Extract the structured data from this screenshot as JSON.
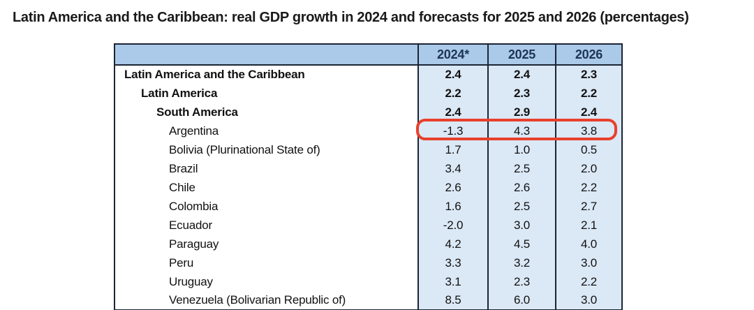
{
  "title": "Latin America and the Caribbean: real GDP growth in 2024 and forecasts for 2025 and 2026 (percentages)",
  "colors": {
    "title_text": "#1a1a1a",
    "header_bg": "#abc9e9",
    "header_text": "#1c3557",
    "cell_bg": "#dbe8f6",
    "border_dark": "#1b2433",
    "body_text": "#111111",
    "annotation_red": "#e8402c"
  },
  "table": {
    "columns": [
      "2024*",
      "2025",
      "2026"
    ],
    "rows": [
      {
        "label": "Latin America and the Caribbean",
        "indent": 0,
        "bold": true,
        "annotated": false,
        "values": [
          "2.4",
          "2.4",
          "2.3"
        ]
      },
      {
        "label": "Latin America",
        "indent": 1,
        "bold": true,
        "annotated": false,
        "values": [
          "2.2",
          "2.3",
          "2.2"
        ]
      },
      {
        "label": "South America",
        "indent": 2,
        "bold": true,
        "annotated": false,
        "values": [
          "2.4",
          "2.9",
          "2.4"
        ]
      },
      {
        "label": "Argentina",
        "indent": 3,
        "bold": false,
        "annotated": true,
        "values": [
          "-1.3",
          "4.3",
          "3.8"
        ]
      },
      {
        "label": "Bolivia (Plurinational State of)",
        "indent": 3,
        "bold": false,
        "annotated": false,
        "values": [
          "1.7",
          "1.0",
          "0.5"
        ]
      },
      {
        "label": "Brazil",
        "indent": 3,
        "bold": false,
        "annotated": false,
        "values": [
          "3.4",
          "2.5",
          "2.0"
        ]
      },
      {
        "label": "Chile",
        "indent": 3,
        "bold": false,
        "annotated": false,
        "values": [
          "2.6",
          "2.6",
          "2.2"
        ]
      },
      {
        "label": "Colombia",
        "indent": 3,
        "bold": false,
        "annotated": false,
        "values": [
          "1.6",
          "2.5",
          "2.7"
        ]
      },
      {
        "label": "Ecuador",
        "indent": 3,
        "bold": false,
        "annotated": false,
        "values": [
          "-2.0",
          "3.0",
          "2.1"
        ]
      },
      {
        "label": "Paraguay",
        "indent": 3,
        "bold": false,
        "annotated": false,
        "values": [
          "4.2",
          "4.5",
          "4.0"
        ]
      },
      {
        "label": "Peru",
        "indent": 3,
        "bold": false,
        "annotated": false,
        "values": [
          "3.3",
          "3.2",
          "3.0"
        ]
      },
      {
        "label": "Uruguay",
        "indent": 3,
        "bold": false,
        "annotated": false,
        "values": [
          "3.1",
          "2.3",
          "2.2"
        ]
      },
      {
        "label": "Venezuela (Bolivarian Republic of)",
        "indent": 3,
        "bold": false,
        "annotated": false,
        "values": [
          "8.5",
          "6.0",
          "3.0"
        ]
      }
    ]
  },
  "annotation": {
    "shape": "red-rounded-rectangle",
    "highlights": "Argentina row values",
    "color": "#e8402c"
  },
  "chart_data": {
    "type": "table",
    "title": "Latin America and the Caribbean: real GDP growth in 2024 and forecasts for 2025 and 2026 (percentages)",
    "columns": [
      "2024*",
      "2025",
      "2026"
    ],
    "rows": [
      {
        "name": "Latin America and the Caribbean",
        "level": 0,
        "values": [
          2.4,
          2.4,
          2.3
        ]
      },
      {
        "name": "Latin America",
        "level": 1,
        "values": [
          2.2,
          2.3,
          2.2
        ]
      },
      {
        "name": "South America",
        "level": 2,
        "values": [
          2.4,
          2.9,
          2.4
        ]
      },
      {
        "name": "Argentina",
        "level": 3,
        "values": [
          -1.3,
          4.3,
          3.8
        ]
      },
      {
        "name": "Bolivia (Plurinational State of)",
        "level": 3,
        "values": [
          1.7,
          1.0,
          0.5
        ]
      },
      {
        "name": "Brazil",
        "level": 3,
        "values": [
          3.4,
          2.5,
          2.0
        ]
      },
      {
        "name": "Chile",
        "level": 3,
        "values": [
          2.6,
          2.6,
          2.2
        ]
      },
      {
        "name": "Colombia",
        "level": 3,
        "values": [
          1.6,
          2.5,
          2.7
        ]
      },
      {
        "name": "Ecuador",
        "level": 3,
        "values": [
          -2.0,
          3.0,
          2.1
        ]
      },
      {
        "name": "Paraguay",
        "level": 3,
        "values": [
          4.2,
          4.5,
          4.0
        ]
      },
      {
        "name": "Peru",
        "level": 3,
        "values": [
          3.3,
          3.2,
          3.0
        ]
      },
      {
        "name": "Uruguay",
        "level": 3,
        "values": [
          3.1,
          2.3,
          2.2
        ]
      },
      {
        "name": "Venezuela (Bolivarian Republic of)",
        "level": 3,
        "values": [
          8.5,
          6.0,
          3.0
        ]
      }
    ],
    "annotations": [
      {
        "type": "highlight-box",
        "target": "Argentina",
        "values": [
          -1.3,
          4.3,
          3.8
        ],
        "color": "#e8402c"
      }
    ]
  }
}
